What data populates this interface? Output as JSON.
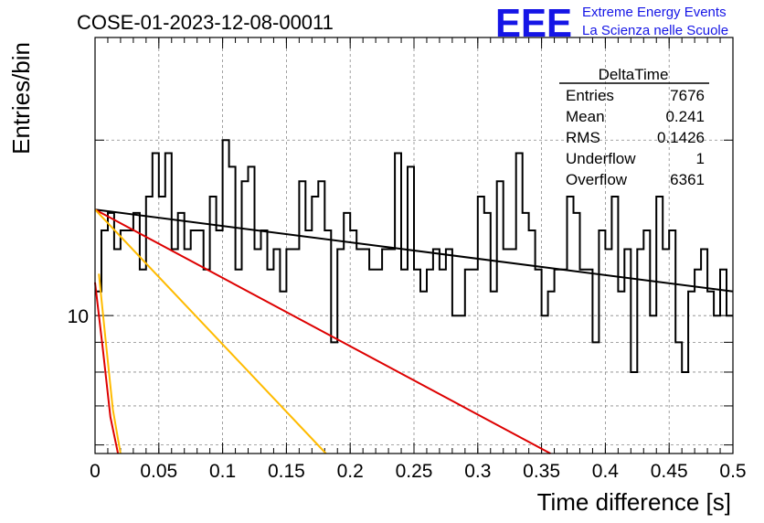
{
  "title": "COSE-01-2023-12-08-00011",
  "brand": {
    "logo": "EEE",
    "line1": "Extreme Energy Events",
    "line2": "La Scienza nelle Scuole"
  },
  "stats": {
    "name": "DeltaTime",
    "rows": [
      {
        "label": "Entries",
        "value": "7676"
      },
      {
        "label": "Mean",
        "value": "0.241"
      },
      {
        "label": "RMS",
        "value": "0.1426"
      },
      {
        "label": "Underflow",
        "value": "1"
      },
      {
        "label": "Overflow",
        "value": "6361"
      }
    ]
  },
  "chart_data": {
    "type": "histogram",
    "xlabel": "Time difference [s]",
    "ylabel": "Entries/bin",
    "xlim": [
      0,
      0.5
    ],
    "ylim": [
      5.8,
      30
    ],
    "yscale": "log",
    "grid": true,
    "x_ticks": [
      "0",
      "0.05",
      "0.1",
      "0.15",
      "0.2",
      "0.25",
      "0.3",
      "0.35",
      "0.4",
      "0.45",
      "0.5"
    ],
    "y_ticks": [
      "10"
    ],
    "bin_width": 0.005,
    "bin_contents": [
      11,
      14,
      15,
      13,
      14,
      14,
      15,
      12,
      16,
      19,
      16,
      19,
      13,
      15,
      13,
      14,
      14,
      12,
      16,
      14,
      20,
      18,
      12,
      17,
      18,
      13,
      14,
      12,
      13,
      11,
      13,
      13,
      17,
      14,
      16,
      17,
      14,
      9,
      13,
      15,
      14,
      13,
      13,
      12,
      12,
      13,
      13,
      19,
      12,
      18,
      12,
      11,
      12,
      13,
      12,
      13,
      10,
      10,
      12,
      12,
      16,
      15,
      11,
      17,
      13,
      13,
      19,
      15,
      14,
      12,
      10,
      11,
      12,
      12,
      16,
      15,
      12,
      12,
      9,
      14,
      13,
      16,
      11,
      13,
      8,
      13,
      14,
      10,
      16,
      13,
      14,
      9,
      8,
      11,
      12,
      13,
      11,
      10,
      12,
      10
    ],
    "series": [
      {
        "name": "",
        "color": "#000000",
        "points": [
          [
            0,
            15.2
          ],
          [
            0.5,
            11.0
          ]
        ]
      },
      {
        "name": "",
        "color": "#dd0000",
        "points": [
          [
            0,
            15.2
          ],
          [
            0.357,
            5.8
          ]
        ]
      },
      {
        "name": "",
        "color": "#ffbb00",
        "points": [
          [
            0,
            15.2
          ],
          [
            0.181,
            5.8
          ]
        ]
      },
      {
        "name": "",
        "color": "#dd0000",
        "points": [
          [
            0,
            11.4
          ],
          [
            0.006,
            8.8
          ],
          [
            0.012,
            6.7
          ],
          [
            0.018,
            5.8
          ]
        ]
      },
      {
        "name": "",
        "color": "#ffbb00",
        "points": [
          [
            0.003,
            11.8
          ],
          [
            0.008,
            9.2
          ],
          [
            0.014,
            6.9
          ],
          [
            0.02,
            5.8
          ]
        ]
      }
    ]
  }
}
